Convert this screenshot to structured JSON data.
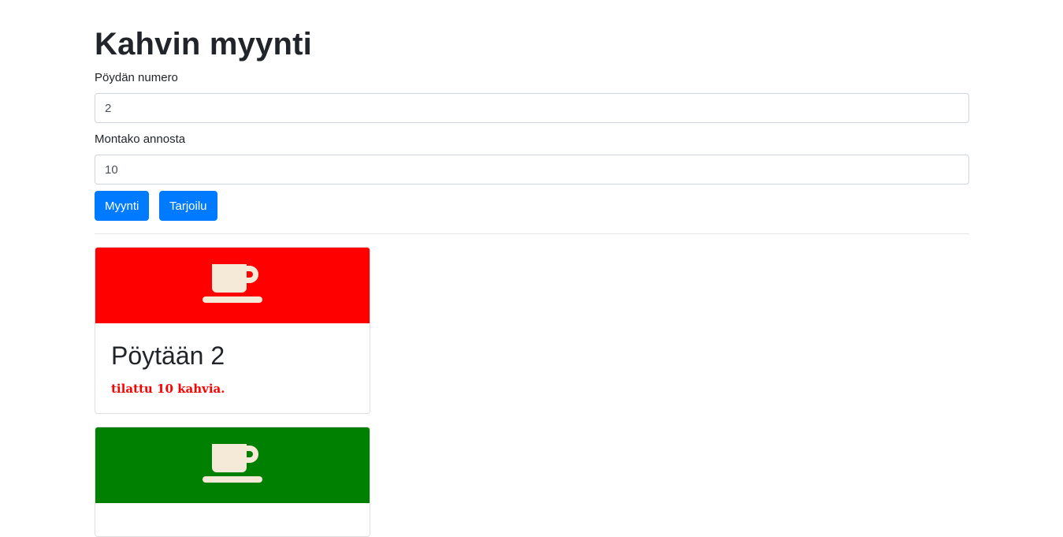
{
  "page": {
    "title": "Kahvin myynti"
  },
  "form": {
    "table_label": "Pöydän numero",
    "table_value": "2",
    "count_label": "Montako annosta",
    "count_value": "10",
    "sell_button": "Myynti",
    "serve_button": "Tarjoilu"
  },
  "orders": [
    {
      "title": "Pöytään 2",
      "text": "tilattu 10 kahvia.",
      "banner_color": "#ff0000",
      "icon": "coffee-cup-icon"
    },
    {
      "title": "",
      "text": "",
      "banner_color": "#008000",
      "icon": "coffee-cup-icon"
    }
  ],
  "colors": {
    "primary": "#007bff",
    "icon_fill": "#f5e9d8",
    "order_text": "#ff0000"
  }
}
